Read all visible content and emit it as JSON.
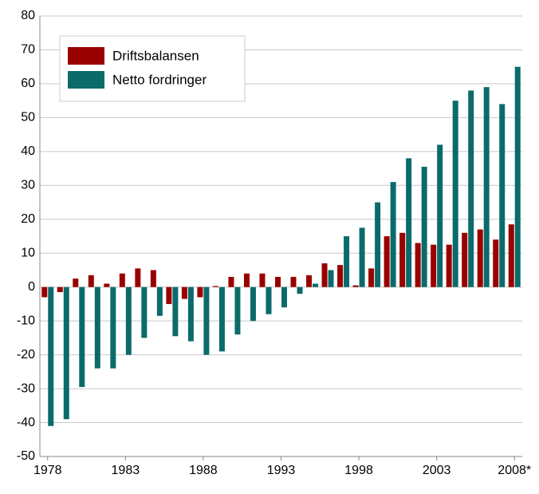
{
  "chart_data": {
    "type": "bar",
    "categories": [
      "1978",
      null,
      null,
      null,
      null,
      "1983",
      null,
      null,
      null,
      null,
      "1988",
      null,
      null,
      null,
      null,
      "1993",
      null,
      null,
      null,
      null,
      "1998",
      null,
      null,
      null,
      null,
      "2003",
      null,
      null,
      null,
      null,
      "2008*"
    ],
    "series": [
      {
        "name": "Driftsbalansen",
        "color": "#990000",
        "values": [
          -3,
          -1.5,
          2.5,
          3.5,
          1,
          4,
          5.5,
          5,
          -5,
          -3.5,
          -3,
          0.3,
          3,
          4,
          4,
          3,
          3,
          3.5,
          7,
          6.5,
          0.5,
          5.5,
          15,
          16,
          13,
          12.5,
          12.5,
          16,
          17,
          14,
          18.5
        ]
      },
      {
        "name": "Netto fordringer",
        "color": "#0b6b6b",
        "values": [
          -41,
          -39,
          -29.5,
          -24,
          -24,
          -20,
          -15,
          -8.5,
          -14.5,
          -16,
          -20,
          -19,
          -14,
          -10,
          -8,
          -6,
          -2,
          1,
          5,
          15,
          17.5,
          25,
          31,
          38,
          35.5,
          42,
          55,
          58,
          59,
          54,
          65
        ]
      }
    ],
    "ylim": [
      -50,
      80
    ],
    "yticks": [
      -50,
      -40,
      -30,
      -20,
      -10,
      0,
      10,
      20,
      30,
      40,
      50,
      60,
      70,
      80
    ],
    "grid": true,
    "legend": "upper left"
  }
}
